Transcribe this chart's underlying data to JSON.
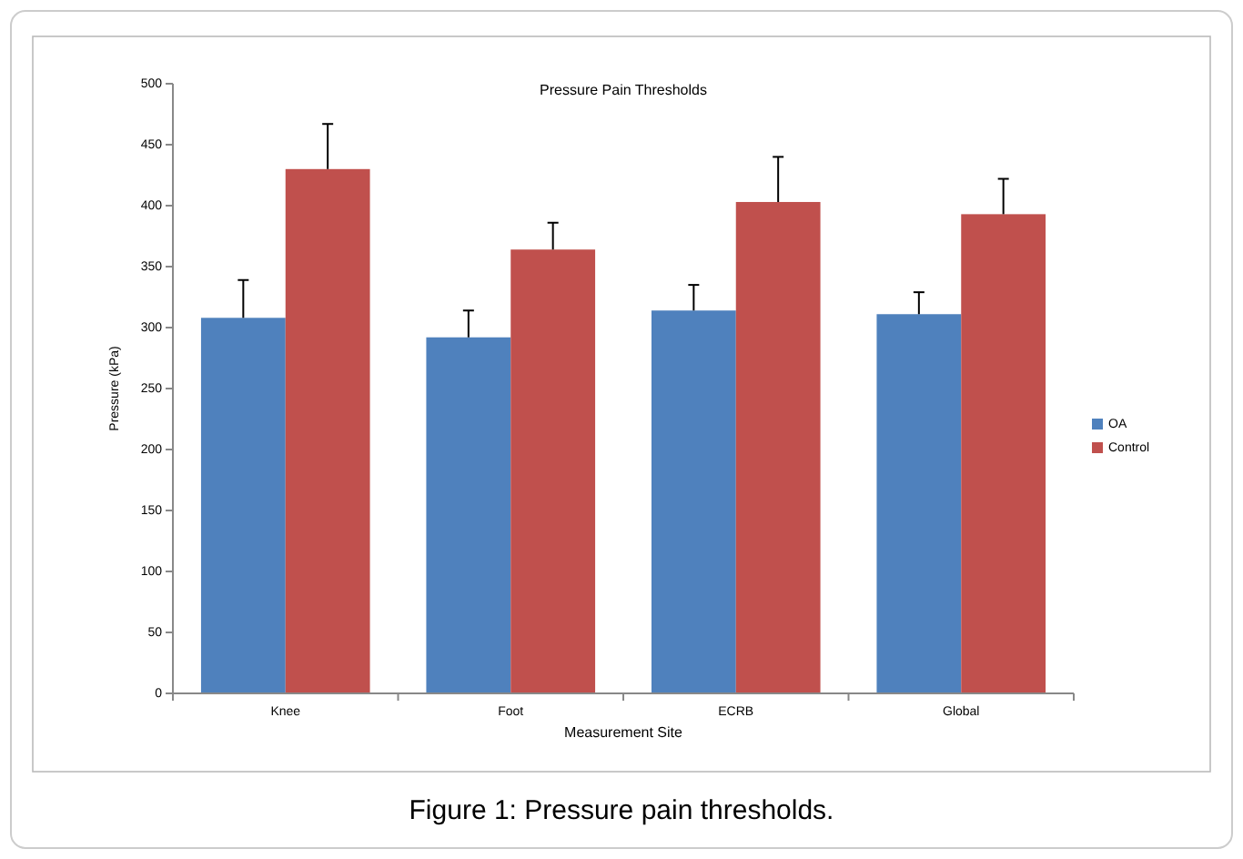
{
  "chart_data": {
    "type": "bar",
    "title": "Pressure Pain Thresholds",
    "xlabel": "Measurement Site",
    "ylabel": "Pressure (kPa)",
    "categories": [
      "Knee",
      "Foot",
      "ECRB",
      "Global"
    ],
    "series": [
      {
        "name": "OA",
        "color": "#4f81bd",
        "values": [
          308,
          292,
          314,
          311
        ],
        "errors": [
          [
            308,
            339
          ],
          [
            292,
            314
          ],
          [
            314,
            335
          ],
          [
            311,
            329
          ]
        ]
      },
      {
        "name": "Control",
        "color": "#c0504d",
        "values": [
          430,
          364,
          403,
          393
        ],
        "errors": [
          [
            430,
            467
          ],
          [
            364,
            386
          ],
          [
            403,
            440
          ],
          [
            393,
            422
          ]
        ]
      }
    ],
    "ylim": [
      0,
      500
    ],
    "yticks": [
      0,
      50,
      100,
      150,
      200,
      250,
      300,
      350,
      400,
      450,
      500
    ],
    "grid": false,
    "legend": "right",
    "annotations": [
      "Figure 1: Pressure pain thresholds."
    ]
  }
}
